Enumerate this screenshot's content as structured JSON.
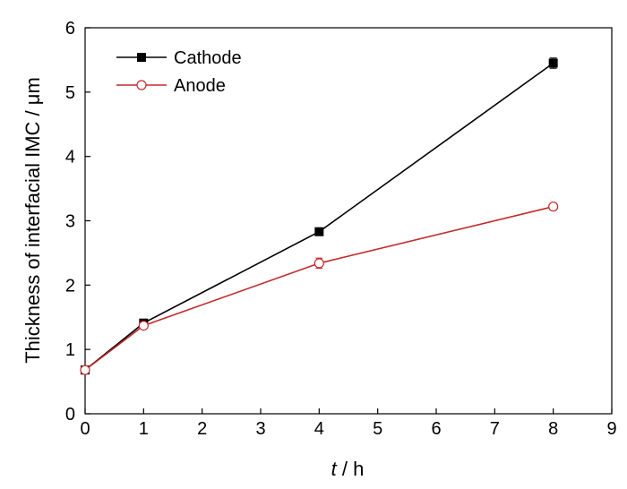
{
  "chart_data": {
    "type": "line",
    "title": "",
    "xlabel": {
      "italic": "t",
      "rest": " / h"
    },
    "ylabel": "Thickness of interfacial IMC / μm",
    "xlim": [
      0,
      9
    ],
    "ylim": [
      0,
      6
    ],
    "xticks": [
      "0",
      "1",
      "2",
      "3",
      "4",
      "5",
      "6",
      "7",
      "8",
      "9"
    ],
    "yticks": [
      "0",
      "1",
      "2",
      "3",
      "4",
      "5",
      "6"
    ],
    "grid": false,
    "legend": {
      "placement": "top-left"
    },
    "series": [
      {
        "name": "Cathode",
        "color": "#000000",
        "marker": "filled-square",
        "x": [
          0,
          1,
          4,
          8
        ],
        "y": [
          0.68,
          1.41,
          2.83,
          5.45
        ],
        "error": [
          0.04,
          0.04,
          0.04,
          0.08
        ]
      },
      {
        "name": "Anode",
        "color": "#c42a2a",
        "marker": "open-circle",
        "x": [
          0,
          1,
          4,
          8
        ],
        "y": [
          0.68,
          1.37,
          2.34,
          3.22
        ],
        "error": [
          0.03,
          0.04,
          0.08,
          0.04
        ]
      }
    ]
  }
}
